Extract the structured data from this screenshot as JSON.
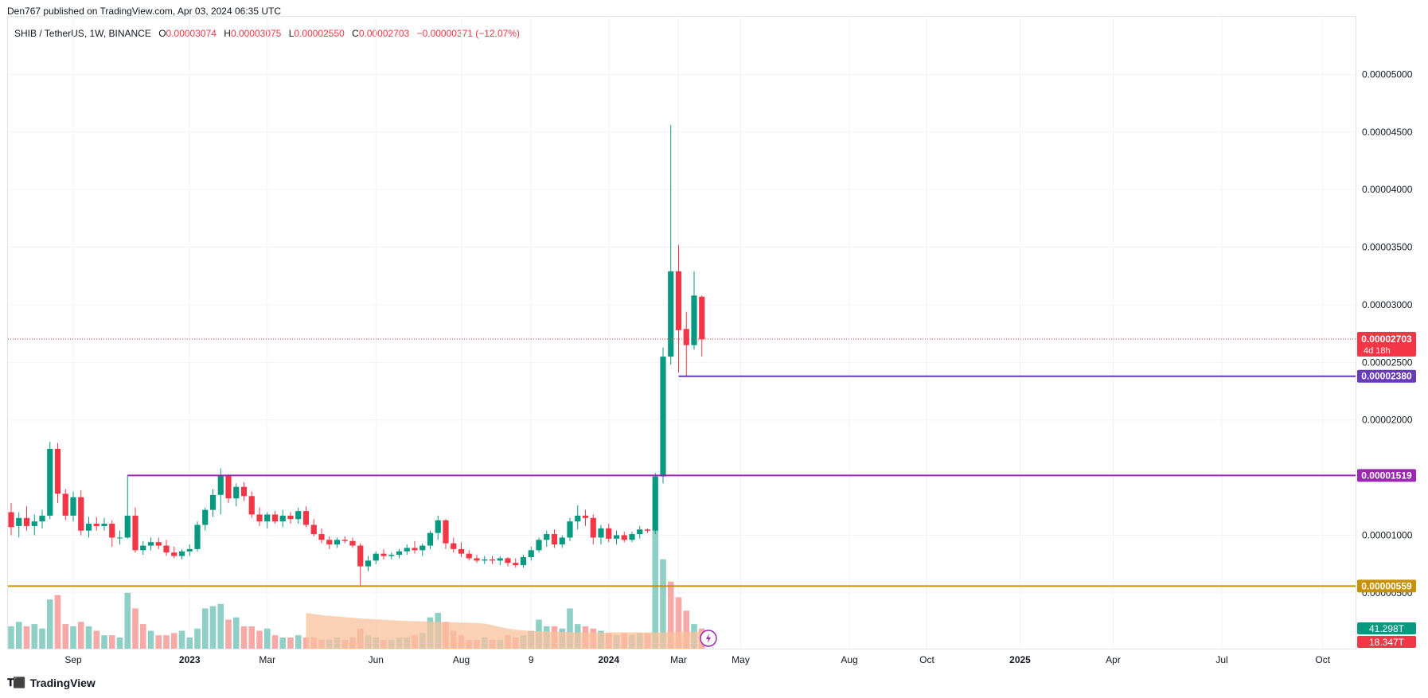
{
  "header": {
    "published_line": "Den767 published on TradingView.com, Apr 03, 2024 06:35 UTC"
  },
  "legend": {
    "symbol": "SHIB / TetherUS, 1W, BINANCE",
    "o_key": "O",
    "o_val": "0.00003074",
    "h_key": "H",
    "h_val": "0.00003075",
    "l_key": "L",
    "l_val": "0.00002550",
    "c_key": "C",
    "c_val": "0.00002703",
    "change": "−0.00000371 (−12.07%)"
  },
  "footer": {
    "brand": "TradingView",
    "logo_icon": "tradingview-logo-icon"
  },
  "colors": {
    "up": "#089981",
    "down": "#f23645",
    "vol_up": "#8fd0c6",
    "vol_down": "#f7a9a7",
    "grid": "#f0f3fa",
    "line_23800": "#673ab7",
    "line_15190": "#9c27b0",
    "line_5590": "#c79100",
    "vol_ma_fill": "#f9c19c",
    "price_tag": "#f23645"
  },
  "chart_data": {
    "type": "candlestick",
    "symbol": "SHIB / TetherUS",
    "interval": "1W",
    "exchange": "BINANCE",
    "y_axis": {
      "ticks": [
        "0.00005000",
        "0.00004500",
        "0.00004000",
        "0.00003500",
        "0.00003000",
        "0.00002500",
        "0.00002000",
        "0.00001000",
        "0.00000500"
      ],
      "tick_values": [
        5e-05,
        4.5e-05,
        4e-05,
        3.5e-05,
        3e-05,
        2.5e-05,
        2e-05,
        1e-05,
        5e-06
      ],
      "range": [
        5.2e-06,
        5.5e-05
      ]
    },
    "x_axis": {
      "labels": [
        "Sep",
        "2023",
        "Mar",
        "Jun",
        "Aug",
        "9",
        "2024",
        "Mar",
        "May",
        "Aug",
        "Oct",
        "2025",
        "Apr",
        "Jul",
        "Oct"
      ],
      "label_bars": [
        8,
        23,
        33,
        47,
        58,
        67,
        77,
        86,
        94,
        108,
        118,
        130,
        142,
        156,
        169
      ],
      "bold_labels": [
        "2023",
        "2024",
        "2025"
      ]
    },
    "ohlc": [
      [
        1.2e-05,
        1.28e-05,
        1e-05,
        1.07e-05
      ],
      [
        1.08e-05,
        1.2e-05,
        9.8e-06,
        1.15e-05
      ],
      [
        1.15e-05,
        1.25e-05,
        1.04e-05,
        1.08e-05
      ],
      [
        1.08e-05,
        1.18e-05,
        1e-05,
        1.12e-05
      ],
      [
        1.12e-05,
        1.22e-05,
        1.06e-05,
        1.17e-05
      ],
      [
        1.17e-05,
        1.81e-05,
        1.14e-05,
        1.75e-05
      ],
      [
        1.75e-05,
        1.8e-05,
        1.28e-05,
        1.36e-05
      ],
      [
        1.36e-05,
        1.4e-05,
        1.13e-05,
        1.17e-05
      ],
      [
        1.17e-05,
        1.38e-05,
        1.12e-05,
        1.33e-05
      ],
      [
        1.33e-05,
        1.39e-05,
        1e-05,
        1.04e-05
      ],
      [
        1.04e-05,
        1.16e-05,
        9.8e-06,
        1.1e-05
      ],
      [
        1.1e-05,
        1.16e-05,
        1.04e-05,
        1.08e-05
      ],
      [
        1.08e-05,
        1.15e-05,
        1.04e-05,
        1.1e-05
      ],
      [
        1.1e-05,
        1.13e-05,
        9e-06,
        9.8e-06
      ],
      [
        9.8e-06,
        1.04e-05,
        9.2e-06,
        9.8e-06
      ],
      [
        9.8e-06,
        1.52e-05,
        9.7e-06,
        1.17e-05
      ],
      [
        1.17e-05,
        1.24e-05,
        8.5e-06,
        8.7e-06
      ],
      [
        8.7e-06,
        9.5e-06,
        8.3e-06,
        9.1e-06
      ],
      [
        9.1e-06,
        9.8e-06,
        8.7e-06,
        9.4e-06
      ],
      [
        9.4e-06,
        9.8e-06,
        8.8e-06,
        9.1e-06
      ],
      [
        9.1e-06,
        9.6e-06,
        8.2e-06,
        8.5e-06
      ],
      [
        8.5e-06,
        9e-06,
        8e-06,
        8.2e-06
      ],
      [
        8.2e-06,
        8.8e-06,
        7.9e-06,
        8.6e-06
      ],
      [
        8.6e-06,
        9.2e-06,
        8.2e-06,
        8.8e-06
      ],
      [
        8.8e-06,
        1.12e-05,
        8.6e-06,
        1.09e-05
      ],
      [
        1.09e-05,
        1.24e-05,
        1.04e-05,
        1.22e-05
      ],
      [
        1.22e-05,
        1.4e-05,
        1.16e-05,
        1.35e-05
      ],
      [
        1.35e-05,
        1.58e-05,
        1.18e-05,
        1.52e-05
      ],
      [
        1.52e-05,
        1.53e-05,
        1.28e-05,
        1.32e-05
      ],
      [
        1.32e-05,
        1.45e-05,
        1.25e-05,
        1.42e-05
      ],
      [
        1.42e-05,
        1.46e-05,
        1.3e-05,
        1.34e-05
      ],
      [
        1.34e-05,
        1.38e-05,
        1.15e-05,
        1.18e-05
      ],
      [
        1.18e-05,
        1.24e-05,
        1.08e-05,
        1.12e-05
      ],
      [
        1.12e-05,
        1.2e-05,
        1.06e-05,
        1.18e-05
      ],
      [
        1.18e-05,
        1.21e-05,
        1.1e-05,
        1.12e-05
      ],
      [
        1.12e-05,
        1.22e-05,
        1.07e-05,
        1.17e-05
      ],
      [
        1.17e-05,
        1.2e-05,
        1.1e-05,
        1.14e-05
      ],
      [
        1.14e-05,
        1.24e-05,
        1.1e-05,
        1.21e-05
      ],
      [
        1.21e-05,
        1.25e-05,
        1.07e-05,
        1.09e-05
      ],
      [
        1.09e-05,
        1.14e-05,
        9.9e-06,
        1.01e-05
      ],
      [
        1.01e-05,
        1.06e-05,
        9.3e-06,
        9.6e-06
      ],
      [
        9.6e-06,
        9.9e-06,
        8.8e-06,
        9.2e-06
      ],
      [
        9.2e-06,
        9.8e-06,
        8.9e-06,
        9.6e-06
      ],
      [
        9.6e-06,
        9.9e-06,
        9.3e-06,
        9.5e-06
      ],
      [
        9.5e-06,
        9.8e-06,
        8.9e-06,
        9.1e-06
      ],
      [
        9.1e-06,
        9.3e-06,
        5.5e-06,
        7.3e-06
      ],
      [
        7.3e-06,
        8.2e-06,
        6.9e-06,
        7.8e-06
      ],
      [
        7.8e-06,
        8.6e-06,
        7.5e-06,
        8.4e-06
      ],
      [
        8.4e-06,
        8.8e-06,
        7.9e-06,
        8.2e-06
      ],
      [
        8.2e-06,
        8.5e-06,
        7.9e-06,
        8.3e-06
      ],
      [
        8.3e-06,
        8.8e-06,
        8e-06,
        8.6e-06
      ],
      [
        8.6e-06,
        9.2e-06,
        8.3e-06,
        8.9e-06
      ],
      [
        8.9e-06,
        9.5e-06,
        8.4e-06,
        8.7e-06
      ],
      [
        8.7e-06,
        9.3e-06,
        8.2e-06,
        9.1e-06
      ],
      [
        9.1e-06,
        1.04e-05,
        8.8e-06,
        1.02e-05
      ],
      [
        1.02e-05,
        1.17e-05,
        9.6e-06,
        1.13e-05
      ],
      [
        1.13e-05,
        1.14e-05,
        8.8e-06,
        9.3e-06
      ],
      [
        9.3e-06,
        9.8e-06,
        8.5e-06,
        8.8e-06
      ],
      [
        8.8e-06,
        9.4e-06,
        8.1e-06,
        8.4e-06
      ],
      [
        8.4e-06,
        8.7e-06,
        7.8e-06,
        8e-06
      ],
      [
        8e-06,
        8.3e-06,
        7.6e-06,
        7.8e-06
      ],
      [
        7.8e-06,
        8.2e-06,
        7.5e-06,
        7.9e-06
      ],
      [
        7.9e-06,
        8.2e-06,
        7.5e-06,
        7.8e-06
      ],
      [
        7.8e-06,
        8.2e-06,
        7.4e-06,
        8e-06
      ],
      [
        8e-06,
        8.1e-06,
        7.3e-06,
        7.6e-06
      ],
      [
        7.6e-06,
        8e-06,
        7.2e-06,
        7.4e-06
      ],
      [
        7.4e-06,
        8.3e-06,
        7.2e-06,
        8.1e-06
      ],
      [
        8.1e-06,
        9e-06,
        7.8e-06,
        8.7e-06
      ],
      [
        8.7e-06,
        9.8e-06,
        8.5e-06,
        9.6e-06
      ],
      [
        9.6e-06,
        1.04e-05,
        9e-06,
        1.01e-05
      ],
      [
        1.01e-05,
        1.05e-05,
        8.9e-06,
        9.2e-06
      ],
      [
        9.2e-06,
        1e-05,
        8.9e-06,
        9.8e-06
      ],
      [
        9.8e-06,
        1.15e-05,
        9.5e-06,
        1.12e-05
      ],
      [
        1.12e-05,
        1.26e-05,
        1.05e-05,
        1.17e-05
      ],
      [
        1.17e-05,
        1.22e-05,
        1.08e-05,
        1.15e-05
      ],
      [
        1.15e-05,
        1.18e-05,
        9.2e-06,
        9.8e-06
      ],
      [
        9.8e-06,
        1.09e-05,
        9.2e-06,
        1.06e-05
      ],
      [
        1.06e-05,
        1.1e-05,
        9.4e-06,
        9.7e-06
      ],
      [
        9.7e-06,
        1.04e-05,
        9.2e-06,
        1e-05
      ],
      [
        1e-05,
        1.03e-05,
        9.4e-06,
        9.6e-06
      ],
      [
        9.6e-06,
        1.03e-05,
        9.4e-06,
        1.01e-05
      ],
      [
        1.01e-05,
        1.08e-05,
        9.7e-06,
        1.05e-05
      ],
      [
        1.05e-05,
        1.06e-05,
        1.02e-05,
        1.04e-05
      ],
      [
        1.04e-05,
        1.54e-05,
        1.01e-05,
        1.51e-05
      ],
      [
        1.51e-05,
        2.63e-05,
        1.45e-05,
        2.55e-05
      ],
      [
        2.55e-05,
        4.56e-05,
        2.48e-05,
        3.29e-05
      ],
      [
        3.29e-05,
        3.52e-05,
        2.41e-05,
        2.78e-05
      ],
      [
        2.79e-05,
        2.94e-05,
        2.38e-05,
        2.65e-05
      ],
      [
        2.65e-05,
        3.29e-05,
        2.61e-05,
        3.08e-05
      ],
      [
        3.07e-05,
        3.08e-05,
        2.55e-05,
        2.7e-05
      ]
    ],
    "volume": [
      {
        "v": 1.0,
        "up": true
      },
      {
        "v": 1.2,
        "up": true
      },
      {
        "v": 1.0,
        "up": false
      },
      {
        "v": 1.1,
        "up": true
      },
      {
        "v": 0.9,
        "up": true
      },
      {
        "v": 2.2,
        "up": true
      },
      {
        "v": 2.4,
        "up": false
      },
      {
        "v": 1.1,
        "up": false
      },
      {
        "v": 1.0,
        "up": true
      },
      {
        "v": 1.2,
        "up": false
      },
      {
        "v": 1.0,
        "up": true
      },
      {
        "v": 0.8,
        "up": false
      },
      {
        "v": 0.6,
        "up": true
      },
      {
        "v": 0.6,
        "up": false
      },
      {
        "v": 0.5,
        "up": true
      },
      {
        "v": 2.5,
        "up": true
      },
      {
        "v": 1.8,
        "up": false
      },
      {
        "v": 1.1,
        "up": false
      },
      {
        "v": 0.8,
        "up": true
      },
      {
        "v": 0.6,
        "up": false
      },
      {
        "v": 0.6,
        "up": false
      },
      {
        "v": 0.7,
        "up": false
      },
      {
        "v": 0.8,
        "up": true
      },
      {
        "v": 0.5,
        "up": true
      },
      {
        "v": 0.9,
        "up": true
      },
      {
        "v": 1.8,
        "up": true
      },
      {
        "v": 1.9,
        "up": true
      },
      {
        "v": 2.0,
        "up": true
      },
      {
        "v": 1.3,
        "up": false
      },
      {
        "v": 1.4,
        "up": true
      },
      {
        "v": 1.0,
        "up": false
      },
      {
        "v": 1.0,
        "up": false
      },
      {
        "v": 0.8,
        "up": false
      },
      {
        "v": 0.9,
        "up": true
      },
      {
        "v": 0.6,
        "up": false
      },
      {
        "v": 0.5,
        "up": true
      },
      {
        "v": 0.5,
        "up": false
      },
      {
        "v": 0.6,
        "up": true
      },
      {
        "v": 0.5,
        "up": false
      },
      {
        "v": 0.5,
        "up": false
      },
      {
        "v": 0.4,
        "up": false
      },
      {
        "v": 0.4,
        "up": true
      },
      {
        "v": 0.5,
        "up": true
      },
      {
        "v": 0.4,
        "up": false
      },
      {
        "v": 0.5,
        "up": false
      },
      {
        "v": 0.9,
        "up": false
      },
      {
        "v": 0.6,
        "up": true
      },
      {
        "v": 0.5,
        "up": true
      },
      {
        "v": 0.4,
        "up": false
      },
      {
        "v": 0.4,
        "up": true
      },
      {
        "v": 0.5,
        "up": true
      },
      {
        "v": 0.5,
        "up": true
      },
      {
        "v": 0.6,
        "up": false
      },
      {
        "v": 0.7,
        "up": true
      },
      {
        "v": 1.4,
        "up": true
      },
      {
        "v": 1.6,
        "up": true
      },
      {
        "v": 1.2,
        "up": false
      },
      {
        "v": 0.8,
        "up": false
      },
      {
        "v": 0.6,
        "up": false
      },
      {
        "v": 0.4,
        "up": false
      },
      {
        "v": 0.4,
        "up": false
      },
      {
        "v": 0.5,
        "up": true
      },
      {
        "v": 0.4,
        "up": false
      },
      {
        "v": 0.4,
        "up": true
      },
      {
        "v": 0.6,
        "up": false
      },
      {
        "v": 0.5,
        "up": false
      },
      {
        "v": 0.6,
        "up": true
      },
      {
        "v": 0.8,
        "up": true
      },
      {
        "v": 1.3,
        "up": true
      },
      {
        "v": 1.0,
        "up": true
      },
      {
        "v": 1.0,
        "up": false
      },
      {
        "v": 0.9,
        "up": true
      },
      {
        "v": 1.8,
        "up": true
      },
      {
        "v": 1.1,
        "up": true
      },
      {
        "v": 1.0,
        "up": false
      },
      {
        "v": 0.9,
        "up": false
      },
      {
        "v": 0.8,
        "up": true
      },
      {
        "v": 0.7,
        "up": false
      },
      {
        "v": 0.6,
        "up": true
      },
      {
        "v": 0.7,
        "up": false
      },
      {
        "v": 0.6,
        "up": true
      },
      {
        "v": 0.7,
        "up": true
      },
      {
        "v": 0.7,
        "up": false
      },
      {
        "v": 7.3,
        "up": true
      },
      {
        "v": 4.0,
        "up": true
      },
      {
        "v": 3.0,
        "up": false
      },
      {
        "v": 2.3,
        "up": false
      },
      {
        "v": 1.7,
        "up": false
      },
      {
        "v": 1.1,
        "up": true
      },
      {
        "v": 0.9,
        "up": false
      }
    ],
    "volume_ma_start_bar": 38,
    "volume_ma": [
      1.6,
      1.55,
      1.5,
      1.47,
      1.44,
      1.41,
      1.38,
      1.35,
      1.33,
      1.31,
      1.29,
      1.27,
      1.26,
      1.24,
      1.23,
      1.22,
      1.21,
      1.2,
      1.19,
      1.18,
      1.17,
      1.16,
      1.15,
      1.12,
      1.05,
      0.97,
      0.9,
      0.85,
      0.82,
      0.8,
      0.78,
      0.77,
      0.76,
      0.75,
      0.74,
      0.73,
      0.72,
      0.72,
      0.72,
      0.72,
      0.73,
      0.73,
      0.73,
      0.73,
      0.73,
      0.73,
      0.73,
      0.74,
      0.74,
      0.75,
      0.76,
      0.77
    ],
    "horizontal_lines": [
      {
        "price": 2.38e-05,
        "label": "0.00002380",
        "start_bar": 86,
        "color_key": "line_23800"
      },
      {
        "price": 1.519e-05,
        "label": "0.00001519",
        "start_bar": 15,
        "color_key": "line_15190"
      },
      {
        "price": 5.59e-06,
        "label": "0.00000559",
        "start_bar": 0,
        "color_key": "line_5590"
      }
    ],
    "last_price": {
      "price": 2.703e-05,
      "label": "0.00002703",
      "countdown": "4d 18h"
    },
    "volume_labels": {
      "volume": "41.298T",
      "volume_ma": "18.347T"
    }
  }
}
